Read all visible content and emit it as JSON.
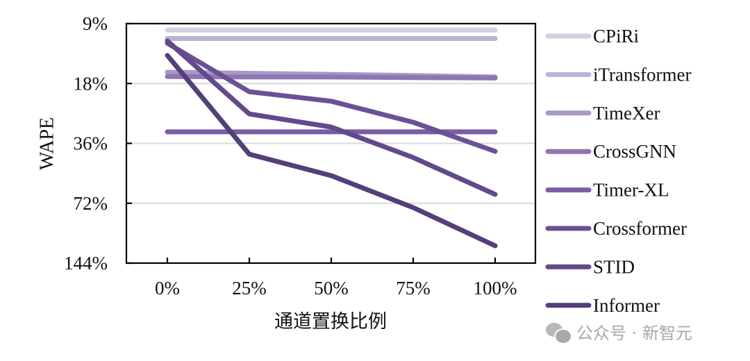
{
  "chart_data": {
    "type": "line",
    "title": "",
    "xlabel": "通道置换比例",
    "ylabel": "WAPE",
    "y_scale": "log2",
    "ylim": [
      9,
      144
    ],
    "yticks": [
      "9%",
      "18%",
      "36%",
      "72%",
      "144%"
    ],
    "ytick_values": [
      9,
      18,
      36,
      72,
      144
    ],
    "categories": [
      "0%",
      "25%",
      "50%",
      "75%",
      "100%"
    ],
    "grid": "horizontal",
    "legend_position": "right",
    "series": [
      {
        "name": "CPiRi",
        "color": "#D3CFE0",
        "values": [
          9.7,
          9.7,
          9.7,
          9.7,
          9.7
        ]
      },
      {
        "name": "iTransformer",
        "color": "#BEB3D3",
        "values": [
          10.7,
          10.7,
          10.7,
          10.7,
          10.7
        ]
      },
      {
        "name": "TimeXer",
        "color": "#A998C6",
        "values": [
          15.8,
          16.0,
          16.2,
          16.4,
          16.7
        ]
      },
      {
        "name": "CrossGNN",
        "color": "#8E76B2",
        "values": [
          16.6,
          16.7,
          16.7,
          16.8,
          16.9
        ]
      },
      {
        "name": "Timer-XL",
        "color": "#7A5DA4",
        "values": [
          31.5,
          31.5,
          31.5,
          31.5,
          31.5
        ]
      },
      {
        "name": "Crossformer",
        "color": "#6C5097",
        "values": [
          11.3,
          19.8,
          22.1,
          28.2,
          39.5
        ]
      },
      {
        "name": "STID",
        "color": "#62498B",
        "values": [
          11.0,
          25.6,
          29.8,
          42.4,
          65.0
        ]
      },
      {
        "name": "Informer",
        "color": "#533F7A",
        "values": [
          13.0,
          40.8,
          52.3,
          75.7,
          117.8
        ]
      }
    ]
  },
  "watermark": {
    "icon": "wechat-icon",
    "text": "公众号 · 新智元"
  }
}
